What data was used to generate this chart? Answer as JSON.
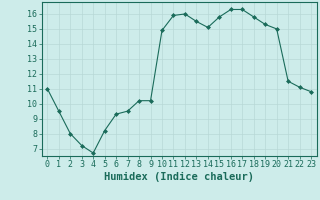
{
  "x": [
    0,
    1,
    2,
    3,
    4,
    5,
    6,
    7,
    8,
    9,
    10,
    11,
    12,
    13,
    14,
    15,
    16,
    17,
    18,
    19,
    20,
    21,
    22,
    23
  ],
  "y": [
    11,
    9.5,
    8,
    7.2,
    6.7,
    8.2,
    9.3,
    9.5,
    10.2,
    10.2,
    14.9,
    15.9,
    16.0,
    15.5,
    15.1,
    15.8,
    16.3,
    16.3,
    15.8,
    15.3,
    15.0,
    11.5,
    11.1,
    10.8
  ],
  "line_color": "#1a6b5a",
  "marker": "D",
  "marker_size": 2.0,
  "bg_color": "#cdecea",
  "grid_color": "#b8d8d6",
  "xlabel": "Humidex (Indice chaleur)",
  "xlabel_fontsize": 7.5,
  "ylabel_ticks": [
    7,
    8,
    9,
    10,
    11,
    12,
    13,
    14,
    15,
    16
  ],
  "xlim": [
    -0.5,
    23.5
  ],
  "ylim": [
    6.5,
    16.8
  ],
  "tick_fontsize": 6.0
}
